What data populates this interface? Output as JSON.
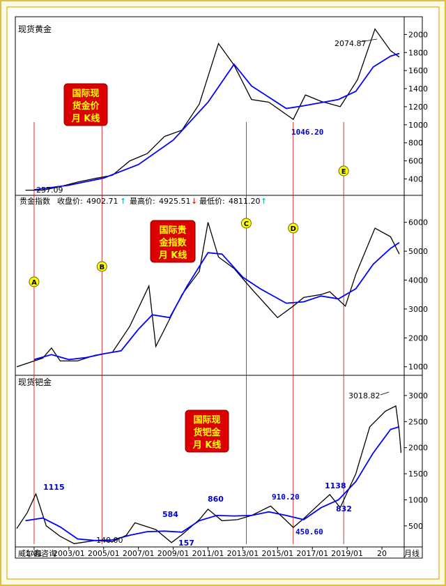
{
  "chart_data": [
    {
      "type": "line",
      "title": "现货黄金",
      "badge": [
        "国际现",
        "货金价",
        "月 K线"
      ],
      "y_ticks": [
        400,
        600,
        800,
        1000,
        1200,
        1400,
        1600,
        1800,
        2000
      ],
      "ylim": [
        280,
        2150
      ],
      "labels": {
        "high": "2074.87",
        "low": "1046.20",
        "start": "257.09"
      },
      "series": [
        {
          "values": [
            [
              2000.5,
              275
            ],
            [
              2001.5,
              275
            ],
            [
              2002.5,
              315
            ],
            [
              2003.5,
              365
            ],
            [
              2004.5,
              405
            ],
            [
              2005.5,
              440
            ],
            [
              2006.5,
              600
            ],
            [
              2007.5,
              680
            ],
            [
              2008.5,
              870
            ],
            [
              2009.5,
              940
            ],
            [
              2010.5,
              1230
            ],
            [
              2011.6,
              1900
            ],
            [
              2012.5,
              1660
            ],
            [
              2013.5,
              1280
            ],
            [
              2014.5,
              1250
            ],
            [
              2015.9,
              1060
            ],
            [
              2016.6,
              1330
            ],
            [
              2017.5,
              1260
            ],
            [
              2018.6,
              1200
            ],
            [
              2019.6,
              1500
            ],
            [
              2020.6,
              2060
            ],
            [
              2021.5,
              1820
            ],
            [
              2022.0,
              1750
            ]
          ]
        },
        {
          "values": [
            [
              2001.0,
              280
            ],
            [
              2003.0,
              330
            ],
            [
              2005.0,
              410
            ],
            [
              2007.0,
              560
            ],
            [
              2009.0,
              830
            ],
            [
              2011.0,
              1250
            ],
            [
              2012.5,
              1670
            ],
            [
              2013.5,
              1430
            ],
            [
              2015.5,
              1180
            ],
            [
              2016.5,
              1210
            ],
            [
              2018.5,
              1280
            ],
            [
              2019.5,
              1370
            ],
            [
              2020.5,
              1640
            ],
            [
              2021.5,
              1760
            ],
            [
              2022.0,
              1790
            ]
          ]
        }
      ]
    },
    {
      "type": "line",
      "header": {
        "name": "贵金指数",
        "close_label": "收盘价:",
        "close": "4902.71",
        "high_label": "最高价:",
        "high": "4925.51",
        "low_label": "最低价:",
        "low": "4811.20"
      },
      "badge": [
        "国际贵",
        "金指数",
        "月 K线"
      ],
      "y_ticks": [
        1000,
        2000,
        3000,
        4000,
        5000,
        6000
      ],
      "ylim": [
        800,
        6500
      ],
      "series": [
        {
          "values": [
            [
              2000.0,
              1000
            ],
            [
              2001.5,
              1300
            ],
            [
              2002.0,
              1650
            ],
            [
              2002.5,
              1200
            ],
            [
              2003.5,
              1200
            ],
            [
              2004.5,
              1400
            ],
            [
              2005.5,
              1500
            ],
            [
              2006.5,
              2400
            ],
            [
              2007.6,
              3800
            ],
            [
              2008.0,
              1700
            ],
            [
              2008.5,
              2300
            ],
            [
              2009.5,
              3500
            ],
            [
              2010.5,
              4300
            ],
            [
              2011.0,
              6000
            ],
            [
              2011.6,
              4800
            ],
            [
              2012.5,
              4400
            ],
            [
              2013.5,
              3700
            ],
            [
              2015.0,
              2700
            ],
            [
              2015.9,
              3100
            ],
            [
              2016.5,
              3400
            ],
            [
              2017.5,
              3500
            ],
            [
              2018.0,
              3600
            ],
            [
              2018.9,
              3100
            ],
            [
              2019.5,
              4200
            ],
            [
              2020.6,
              5800
            ],
            [
              2021.5,
              5500
            ],
            [
              2022.0,
              4900
            ]
          ]
        },
        {
          "values": [
            [
              2001.0,
              1250
            ],
            [
              2002.0,
              1420
            ],
            [
              2003.0,
              1250
            ],
            [
              2004.0,
              1320
            ],
            [
              2005.0,
              1450
            ],
            [
              2006.0,
              1550
            ],
            [
              2007.0,
              2300
            ],
            [
              2007.8,
              2800
            ],
            [
              2008.8,
              2700
            ],
            [
              2009.8,
              3800
            ],
            [
              2011.0,
              4950
            ],
            [
              2011.8,
              4900
            ],
            [
              2013.0,
              4100
            ],
            [
              2014.0,
              3700
            ],
            [
              2015.5,
              3200
            ],
            [
              2016.5,
              3250
            ],
            [
              2017.5,
              3450
            ],
            [
              2018.5,
              3350
            ],
            [
              2019.5,
              3700
            ],
            [
              2020.5,
              4550
            ],
            [
              2021.5,
              5100
            ],
            [
              2022.0,
              5300
            ]
          ]
        }
      ]
    },
    {
      "type": "line",
      "title": "现货钯金",
      "badge": [
        "国际现",
        "货钯金",
        "月 K线"
      ],
      "y_ticks": [
        500,
        1000,
        1500,
        2000,
        2500,
        3000
      ],
      "ylim": [
        150,
        3200
      ],
      "labels": {
        "p2001": "1115",
        "p2003": "140.00",
        "p2006": "584",
        "p2008": "157",
        "p2010": "860",
        "p2014": "910.20",
        "p2016": "450.60",
        "p2017": "1138",
        "p2018": "832",
        "p2022": "3018.82"
      },
      "series": [
        {
          "values": [
            [
              2000.0,
              450
            ],
            [
              2000.6,
              750
            ],
            [
              2001.1,
              1115
            ],
            [
              2001.7,
              500
            ],
            [
              2002.5,
              300
            ],
            [
              2003.3,
              160
            ],
            [
              2004.5,
              220
            ],
            [
              2005.5,
              200
            ],
            [
              2006.3,
              320
            ],
            [
              2006.8,
              560
            ],
            [
              2008.0,
              430
            ],
            [
              2008.9,
              180
            ],
            [
              2009.5,
              330
            ],
            [
              2010.5,
              620
            ],
            [
              2011.0,
              820
            ],
            [
              2011.8,
              600
            ],
            [
              2012.7,
              620
            ],
            [
              2013.5,
              700
            ],
            [
              2014.6,
              880
            ],
            [
              2015.5,
              600
            ],
            [
              2015.9,
              470
            ],
            [
              2016.5,
              640
            ],
            [
              2017.5,
              950
            ],
            [
              2018.0,
              1100
            ],
            [
              2018.6,
              850
            ],
            [
              2019.5,
              1500
            ],
            [
              2020.3,
              2400
            ],
            [
              2021.2,
              2700
            ],
            [
              2021.8,
              2800
            ],
            [
              2022.0,
              2300
            ],
            [
              2022.1,
              1900
            ]
          ]
        },
        {
          "values": [
            [
              2000.5,
              600
            ],
            [
              2001.5,
              650
            ],
            [
              2002.5,
              480
            ],
            [
              2003.5,
              250
            ],
            [
              2004.5,
              220
            ],
            [
              2005.5,
              230
            ],
            [
              2006.5,
              320
            ],
            [
              2007.5,
              390
            ],
            [
              2008.5,
              400
            ],
            [
              2009.5,
              380
            ],
            [
              2010.5,
              600
            ],
            [
              2011.5,
              700
            ],
            [
              2012.5,
              690
            ],
            [
              2013.5,
              700
            ],
            [
              2014.5,
              770
            ],
            [
              2015.5,
              700
            ],
            [
              2016.5,
              620
            ],
            [
              2017.5,
              850
            ],
            [
              2018.5,
              1000
            ],
            [
              2019.5,
              1350
            ],
            [
              2020.5,
              1900
            ],
            [
              2021.5,
              2350
            ],
            [
              2022.0,
              2400
            ]
          ]
        }
      ]
    }
  ],
  "x_axis": {
    "labels": [
      "1/01",
      "2003/01",
      "2005/01",
      "2007/01",
      "2009/01",
      "2011/01",
      "2013/01",
      "2015/01",
      "2017/01",
      "2019/01",
      "20"
    ],
    "suffix": "月线"
  },
  "markers": [
    {
      "letter": "A",
      "x": 2001.0
    },
    {
      "letter": "B",
      "x": 2004.9
    },
    {
      "letter": "C",
      "x": 2013.2
    },
    {
      "letter": "D",
      "x": 2015.9
    },
    {
      "letter": "E",
      "x": 2018.8
    }
  ],
  "footer": {
    "brand": "威尔鑫咨询"
  },
  "colors": {
    "price": "#000000",
    "ma": "#0000ff",
    "guide": "#cc0000",
    "badge": "#dd0000",
    "badge_text": "#ffff00",
    "marker": "#ffff00",
    "annotation": "#0000cc",
    "frame": "#d8b000"
  }
}
